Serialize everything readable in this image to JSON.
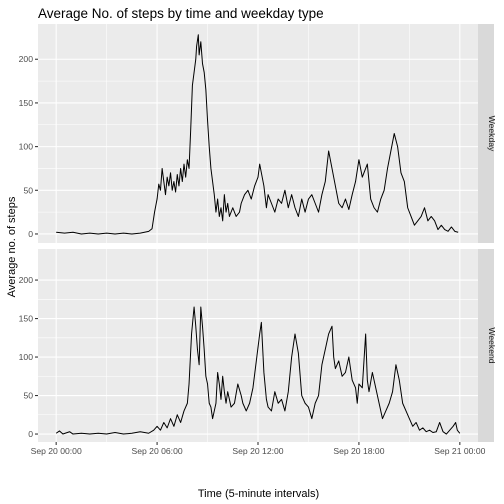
{
  "chart_data": {
    "type": "line",
    "title": "Average No. of steps by time and weekday type",
    "xlabel": "Time (5-minute intervals)",
    "ylabel": "Average no. of  steps",
    "x_unit": "hours",
    "x_ticks": [
      {
        "hour": 0,
        "label": "Sep 20 00:00"
      },
      {
        "hour": 6,
        "label": "Sep 20 06:00"
      },
      {
        "hour": 12,
        "label": "Sep 20 12:00"
      },
      {
        "hour": 18,
        "label": "Sep 20 18:00"
      },
      {
        "hour": 24,
        "label": "Sep 21 00:00"
      }
    ],
    "xlim": [
      "Sep 20 00:00",
      "Sep 21 00:00"
    ],
    "ylim": [
      0,
      230
    ],
    "y_ticks": [
      0,
      50,
      100,
      150,
      200
    ],
    "grid": true,
    "facets": [
      {
        "strip": "Weekday",
        "points": [
          [
            0,
            2
          ],
          [
            0.5,
            1
          ],
          [
            1,
            2
          ],
          [
            1.5,
            0
          ],
          [
            2,
            1
          ],
          [
            2.5,
            0
          ],
          [
            3,
            1
          ],
          [
            3.5,
            0
          ],
          [
            4,
            1
          ],
          [
            4.5,
            0
          ],
          [
            5,
            1
          ],
          [
            5.5,
            3
          ],
          [
            5.7,
            6
          ],
          [
            5.85,
            25
          ],
          [
            6,
            40
          ],
          [
            6.1,
            57
          ],
          [
            6.2,
            50
          ],
          [
            6.3,
            75
          ],
          [
            6.4,
            60
          ],
          [
            6.5,
            45
          ],
          [
            6.6,
            65
          ],
          [
            6.7,
            55
          ],
          [
            6.8,
            70
          ],
          [
            6.9,
            50
          ],
          [
            7,
            60
          ],
          [
            7.1,
            48
          ],
          [
            7.2,
            68
          ],
          [
            7.3,
            55
          ],
          [
            7.4,
            75
          ],
          [
            7.5,
            60
          ],
          [
            7.6,
            80
          ],
          [
            7.7,
            65
          ],
          [
            7.8,
            85
          ],
          [
            7.9,
            75
          ],
          [
            8,
            120
          ],
          [
            8.1,
            170
          ],
          [
            8.2,
            185
          ],
          [
            8.3,
            200
          ],
          [
            8.35,
            215
          ],
          [
            8.45,
            228
          ],
          [
            8.5,
            205
          ],
          [
            8.6,
            220
          ],
          [
            8.7,
            195
          ],
          [
            8.8,
            185
          ],
          [
            8.9,
            165
          ],
          [
            9,
            130
          ],
          [
            9.1,
            100
          ],
          [
            9.2,
            75
          ],
          [
            9.3,
            60
          ],
          [
            9.4,
            45
          ],
          [
            9.5,
            25
          ],
          [
            9.6,
            40
          ],
          [
            9.7,
            20
          ],
          [
            9.8,
            30
          ],
          [
            9.9,
            15
          ],
          [
            10,
            45
          ],
          [
            10.1,
            25
          ],
          [
            10.2,
            35
          ],
          [
            10.3,
            20
          ],
          [
            10.5,
            30
          ],
          [
            10.7,
            20
          ],
          [
            10.9,
            25
          ],
          [
            11,
            35
          ],
          [
            11.2,
            45
          ],
          [
            11.4,
            50
          ],
          [
            11.6,
            40
          ],
          [
            11.8,
            55
          ],
          [
            12,
            65
          ],
          [
            12.1,
            80
          ],
          [
            12.2,
            70
          ],
          [
            12.35,
            55
          ],
          [
            12.5,
            30
          ],
          [
            12.6,
            45
          ],
          [
            12.8,
            35
          ],
          [
            13,
            25
          ],
          [
            13.2,
            40
          ],
          [
            13.4,
            35
          ],
          [
            13.6,
            50
          ],
          [
            13.8,
            30
          ],
          [
            14,
            45
          ],
          [
            14.2,
            30
          ],
          [
            14.4,
            20
          ],
          [
            14.6,
            40
          ],
          [
            14.8,
            25
          ],
          [
            15,
            40
          ],
          [
            15.2,
            45
          ],
          [
            15.4,
            35
          ],
          [
            15.6,
            25
          ],
          [
            15.8,
            45
          ],
          [
            16,
            60
          ],
          [
            16.2,
            95
          ],
          [
            16.4,
            75
          ],
          [
            16.6,
            55
          ],
          [
            16.8,
            35
          ],
          [
            17,
            30
          ],
          [
            17.2,
            40
          ],
          [
            17.4,
            28
          ],
          [
            17.6,
            45
          ],
          [
            17.8,
            60
          ],
          [
            18,
            85
          ],
          [
            18.2,
            65
          ],
          [
            18.4,
            75
          ],
          [
            18.5,
            80
          ],
          [
            18.7,
            40
          ],
          [
            18.9,
            30
          ],
          [
            19.1,
            25
          ],
          [
            19.3,
            40
          ],
          [
            19.5,
            50
          ],
          [
            19.7,
            75
          ],
          [
            19.9,
            95
          ],
          [
            20.1,
            115
          ],
          [
            20.3,
            100
          ],
          [
            20.5,
            70
          ],
          [
            20.7,
            60
          ],
          [
            20.9,
            30
          ],
          [
            21.1,
            20
          ],
          [
            21.3,
            10
          ],
          [
            21.5,
            15
          ],
          [
            21.7,
            20
          ],
          [
            21.9,
            30
          ],
          [
            22.1,
            15
          ],
          [
            22.3,
            20
          ],
          [
            22.5,
            15
          ],
          [
            22.7,
            5
          ],
          [
            22.9,
            10
          ],
          [
            23.1,
            5
          ],
          [
            23.3,
            3
          ],
          [
            23.5,
            8
          ],
          [
            23.7,
            3
          ],
          [
            23.9,
            2
          ]
        ]
      },
      {
        "strip": "Weekend",
        "points": [
          [
            0,
            1
          ],
          [
            0.2,
            4
          ],
          [
            0.4,
            0
          ],
          [
            0.8,
            3
          ],
          [
            1,
            0
          ],
          [
            1.5,
            1
          ],
          [
            2,
            0
          ],
          [
            2.5,
            1
          ],
          [
            3,
            0
          ],
          [
            3.5,
            2
          ],
          [
            4,
            0
          ],
          [
            4.5,
            1
          ],
          [
            5,
            3
          ],
          [
            5.5,
            1
          ],
          [
            5.8,
            5
          ],
          [
            6,
            10
          ],
          [
            6.2,
            5
          ],
          [
            6.4,
            15
          ],
          [
            6.6,
            8
          ],
          [
            6.8,
            20
          ],
          [
            7,
            10
          ],
          [
            7.2,
            25
          ],
          [
            7.4,
            15
          ],
          [
            7.6,
            30
          ],
          [
            7.8,
            40
          ],
          [
            7.9,
            65
          ],
          [
            8.05,
            130
          ],
          [
            8.2,
            165
          ],
          [
            8.3,
            140
          ],
          [
            8.4,
            110
          ],
          [
            8.5,
            90
          ],
          [
            8.6,
            165
          ],
          [
            8.7,
            140
          ],
          [
            8.8,
            110
          ],
          [
            8.9,
            75
          ],
          [
            9,
            65
          ],
          [
            9.1,
            40
          ],
          [
            9.2,
            35
          ],
          [
            9.3,
            20
          ],
          [
            9.4,
            30
          ],
          [
            9.5,
            40
          ],
          [
            9.6,
            80
          ],
          [
            9.7,
            65
          ],
          [
            9.8,
            45
          ],
          [
            9.9,
            75
          ],
          [
            10,
            55
          ],
          [
            10.1,
            40
          ],
          [
            10.2,
            55
          ],
          [
            10.4,
            35
          ],
          [
            10.6,
            40
          ],
          [
            10.8,
            65
          ],
          [
            11,
            50
          ],
          [
            11.1,
            40
          ],
          [
            11.3,
            30
          ],
          [
            11.5,
            40
          ],
          [
            11.7,
            60
          ],
          [
            11.9,
            95
          ],
          [
            12.1,
            130
          ],
          [
            12.2,
            145
          ],
          [
            12.35,
            80
          ],
          [
            12.5,
            45
          ],
          [
            12.6,
            35
          ],
          [
            12.8,
            30
          ],
          [
            13,
            55
          ],
          [
            13.2,
            40
          ],
          [
            13.4,
            45
          ],
          [
            13.6,
            30
          ],
          [
            13.8,
            55
          ],
          [
            14,
            100
          ],
          [
            14.2,
            130
          ],
          [
            14.4,
            105
          ],
          [
            14.6,
            50
          ],
          [
            14.8,
            40
          ],
          [
            15,
            35
          ],
          [
            15.2,
            20
          ],
          [
            15.4,
            40
          ],
          [
            15.6,
            50
          ],
          [
            15.8,
            90
          ],
          [
            16,
            110
          ],
          [
            16.2,
            130
          ],
          [
            16.4,
            140
          ],
          [
            16.5,
            100
          ],
          [
            16.6,
            85
          ],
          [
            16.8,
            95
          ],
          [
            17,
            75
          ],
          [
            17.2,
            80
          ],
          [
            17.4,
            100
          ],
          [
            17.6,
            70
          ],
          [
            17.8,
            60
          ],
          [
            17.9,
            40
          ],
          [
            18,
            65
          ],
          [
            18.2,
            60
          ],
          [
            18.4,
            130
          ],
          [
            18.5,
            70
          ],
          [
            18.6,
            55
          ],
          [
            18.8,
            80
          ],
          [
            19,
            60
          ],
          [
            19.2,
            40
          ],
          [
            19.4,
            20
          ],
          [
            19.6,
            30
          ],
          [
            19.8,
            40
          ],
          [
            20,
            55
          ],
          [
            20.2,
            90
          ],
          [
            20.4,
            70
          ],
          [
            20.6,
            40
          ],
          [
            20.8,
            30
          ],
          [
            21,
            20
          ],
          [
            21.2,
            10
          ],
          [
            21.4,
            15
          ],
          [
            21.6,
            5
          ],
          [
            21.8,
            8
          ],
          [
            22,
            3
          ],
          [
            22.2,
            5
          ],
          [
            22.4,
            2
          ],
          [
            22.6,
            3
          ],
          [
            22.8,
            15
          ],
          [
            23,
            3
          ],
          [
            23.2,
            0
          ],
          [
            23.4,
            5
          ],
          [
            23.6,
            10
          ],
          [
            23.75,
            15
          ],
          [
            23.85,
            5
          ],
          [
            24,
            1
          ]
        ]
      }
    ]
  }
}
